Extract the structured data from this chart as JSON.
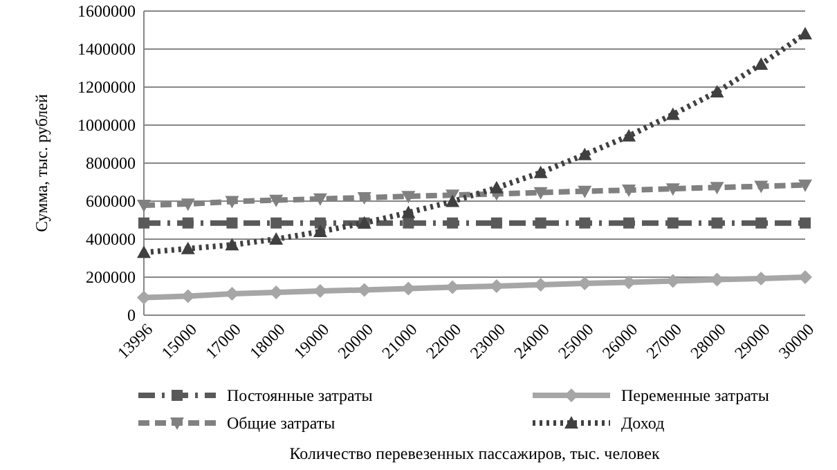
{
  "chart_data": {
    "type": "line",
    "xlabel": "Количество перевезенных пассажиров, тыс. человек",
    "ylabel": "Сумма, тыс. рублей",
    "categories": [
      "13996",
      "15000",
      "17000",
      "18000",
      "19000",
      "20000",
      "21000",
      "22000",
      "23000",
      "24000",
      "25000",
      "26000",
      "27000",
      "28000",
      "29000",
      "30000"
    ],
    "series": [
      {
        "name": "Постоянные затраты",
        "color": "#595959",
        "marker": "square",
        "line_style": "dashdot",
        "values": [
          485000,
          485000,
          485000,
          485000,
          485000,
          485000,
          485000,
          485000,
          485000,
          485000,
          485000,
          485000,
          485000,
          485000,
          485000,
          485000
        ]
      },
      {
        "name": "Переменные затраты",
        "color": "#a6a6a6",
        "marker": "diamond",
        "line_style": "solid",
        "values": [
          93000,
          100000,
          113000,
          120000,
          127000,
          133000,
          140000,
          147000,
          153000,
          160000,
          167000,
          173000,
          180000,
          187000,
          193000,
          200000
        ]
      },
      {
        "name": "Общие затраты",
        "color": "#808080",
        "marker": "triangle-down",
        "line_style": "dashed",
        "values": [
          578000,
          585000,
          598000,
          605000,
          612000,
          618000,
          625000,
          632000,
          638000,
          645000,
          652000,
          658000,
          665000,
          672000,
          678000,
          685000
        ]
      },
      {
        "name": "Доход",
        "color": "#404040",
        "marker": "triangle",
        "line_style": "dotted",
        "values": [
          330000,
          350000,
          370000,
          400000,
          440000,
          485000,
          540000,
          598000,
          670000,
          750000,
          845000,
          943000,
          1056000,
          1175000,
          1320000,
          1480000
        ]
      }
    ],
    "ylim": [
      0,
      1600000
    ],
    "yticks": [
      0,
      200000,
      400000,
      600000,
      800000,
      1000000,
      1200000,
      1400000,
      1600000
    ],
    "grid": "y",
    "legend": "bottom"
  }
}
